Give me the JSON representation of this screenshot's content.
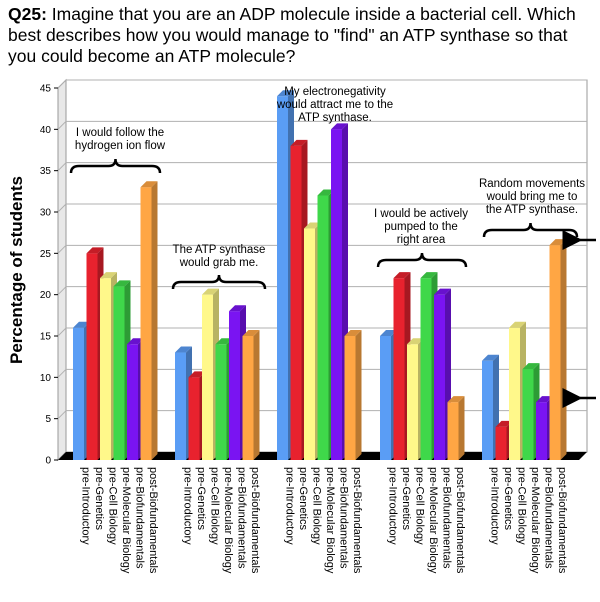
{
  "question": {
    "number": "Q25:",
    "text": "Imagine that you are an ADP molecule inside a bacterial cell. Which best describes how you would manage to \"find\" an ATP synthase so that you could become an ATP molecule?"
  },
  "colors": {
    "pre-Introductory": "#5a9df5",
    "pre-Genetics": "#e8222e",
    "pre-Cell Biology": "#fff88a",
    "pre-Molecular Biology": "#3fd84a",
    "pre-Biofundamentals": "#7a14f2",
    "post-Biofundamentals": "#ffa644"
  },
  "chart_data": {
    "type": "bar",
    "title": "",
    "xlabel": "",
    "ylabel": "Percentage of students",
    "ylim": [
      0,
      45
    ],
    "yticks": [
      0,
      5,
      10,
      15,
      20,
      25,
      30,
      35,
      40,
      45
    ],
    "grid": true,
    "series_names": [
      "pre-Introductory",
      "pre-Genetics",
      "pre-Cell Biology",
      "pre-Molecular Biology",
      "pre-Biofundamentals",
      "post-Biofundamentals"
    ],
    "groups": [
      {
        "annotation": [
          "I would follow the",
          "hydrogen ion flow"
        ],
        "values": [
          16,
          25,
          22,
          21,
          14,
          33
        ]
      },
      {
        "annotation": [
          "The ATP synthase",
          "would grab me."
        ],
        "values": [
          13,
          10,
          20,
          14,
          18,
          15
        ]
      },
      {
        "annotation": [
          "My electronegativity",
          "would attract me to the",
          "ATP synthase."
        ],
        "values": [
          44,
          38,
          28,
          32,
          40,
          15
        ]
      },
      {
        "annotation": [
          "I would be actively",
          "pumped to the",
          "right area"
        ],
        "values": [
          15,
          22,
          14,
          22,
          20,
          7
        ]
      },
      {
        "annotation": [
          "Random movements",
          "would bring me to",
          "the ATP synthase."
        ],
        "values": [
          12,
          4,
          16,
          11,
          7,
          26
        ]
      }
    ]
  }
}
